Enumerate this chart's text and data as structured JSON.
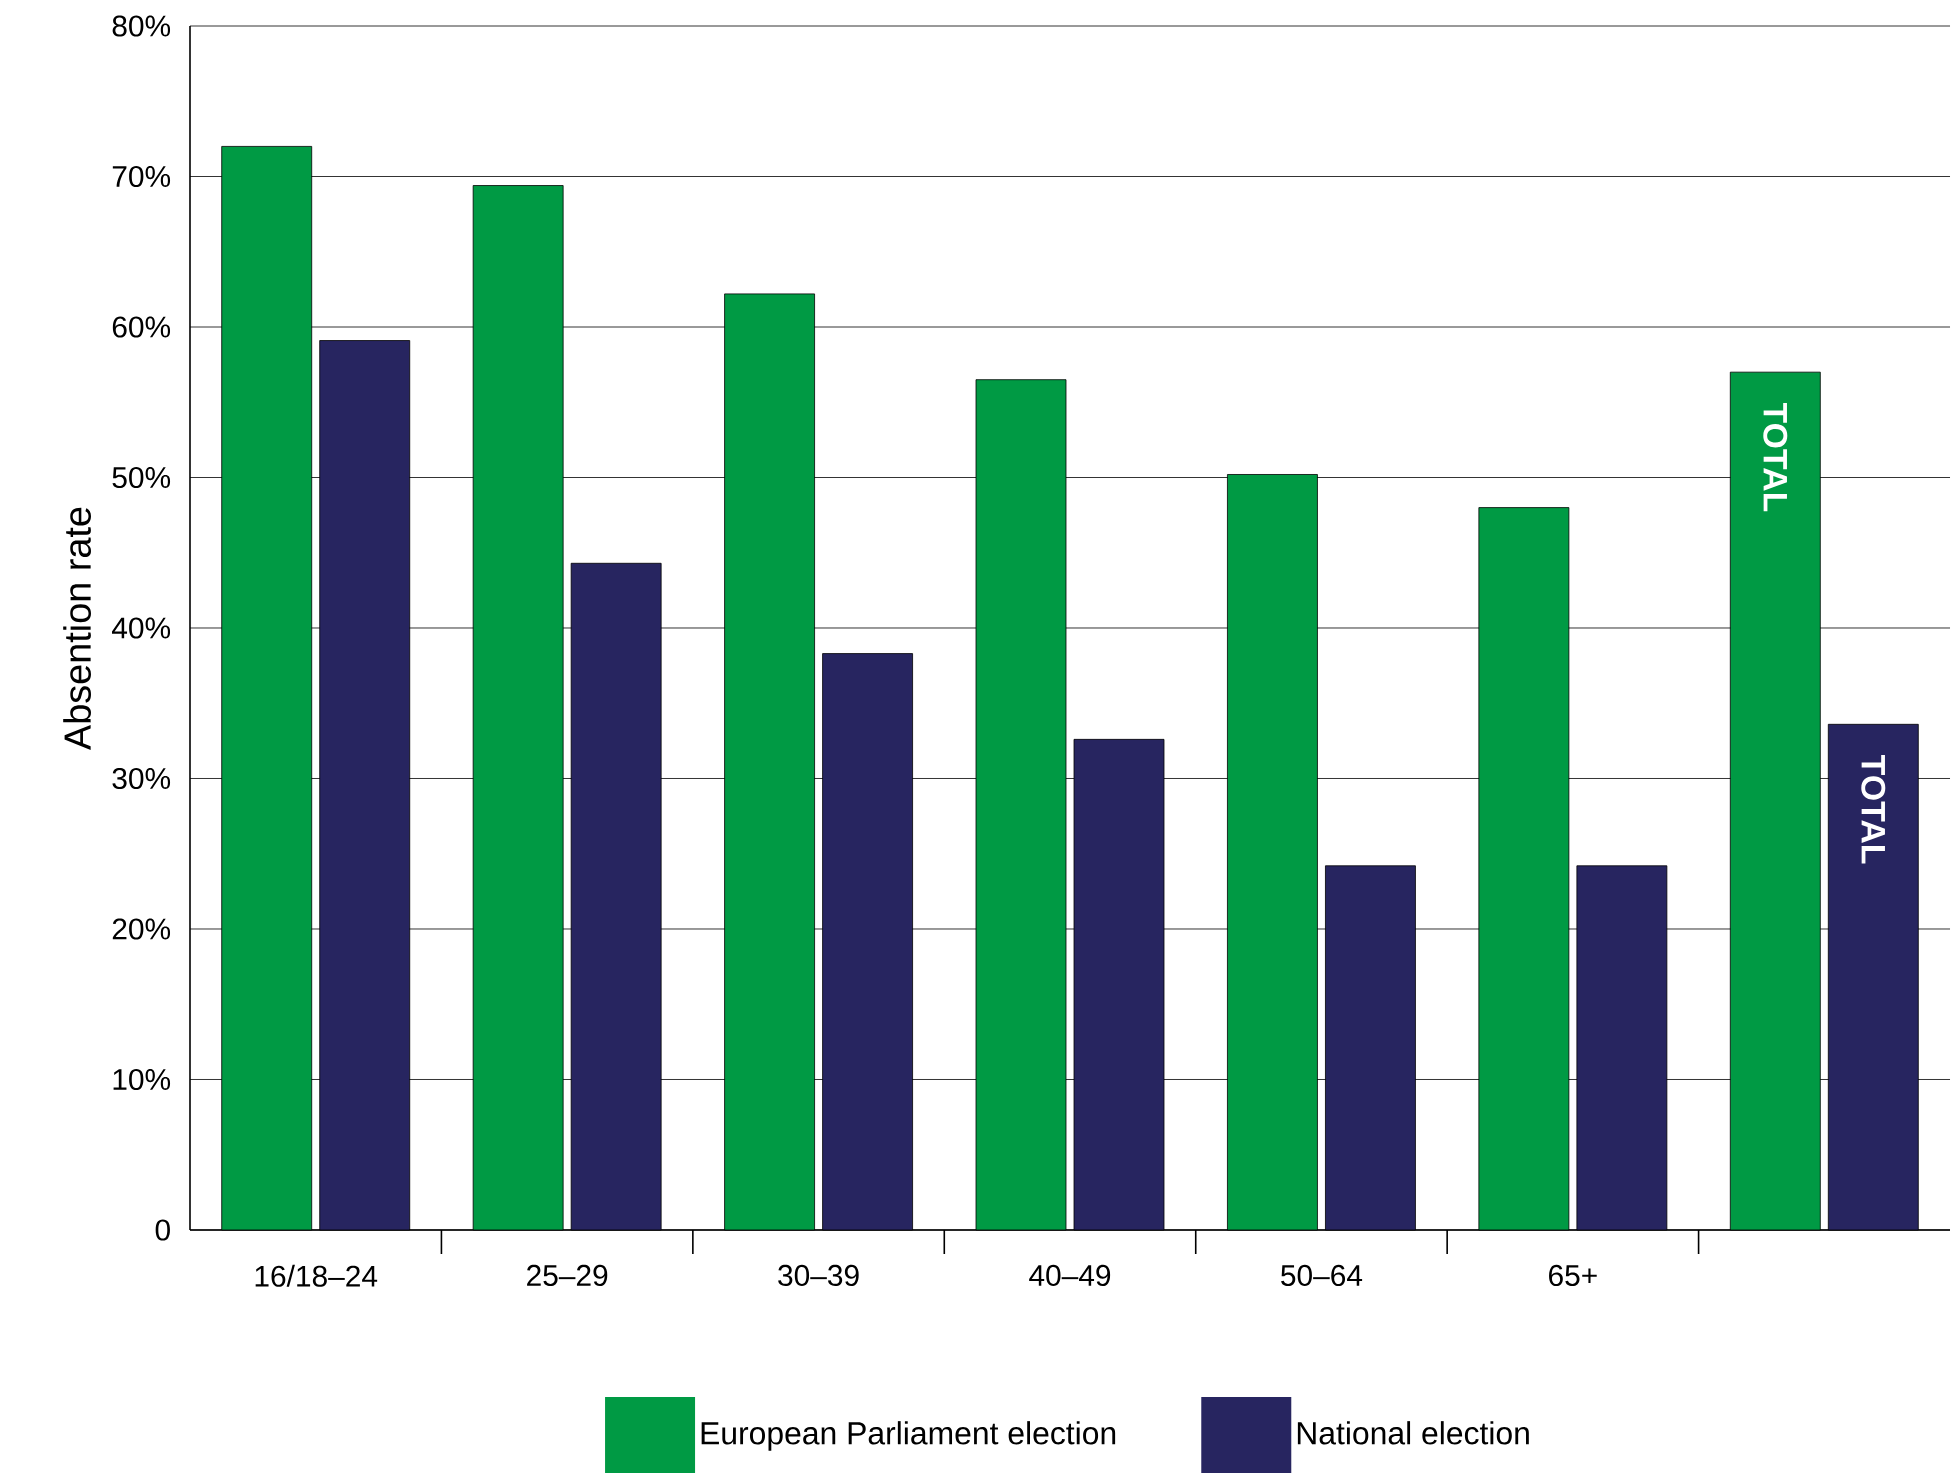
{
  "chart_data": {
    "type": "bar",
    "ylabel": "Absention rate",
    "categories": [
      "16/18–24",
      "25–29",
      "30–39",
      "40–49",
      "50–64",
      "65+",
      null
    ],
    "series": [
      {
        "name": "European Parliament election",
        "color": "#009a44",
        "values": [
          72,
          69.4,
          62.2,
          56.5,
          50.2,
          48,
          57
        ]
      },
      {
        "name": "National election",
        "color": "#272560",
        "values": [
          59.1,
          44.3,
          38.3,
          32.6,
          24.2,
          24.2,
          33.6
        ]
      }
    ],
    "annotations": [
      "TOTAL",
      "TOTAL"
    ],
    "ylim": [
      0,
      80
    ],
    "yticks": [
      0,
      {
        "value": 10,
        "label": "10%"
      },
      {
        "value": 20,
        "label": "20%"
      },
      {
        "value": 30,
        "label": "30%"
      },
      {
        "value": 40,
        "label": "40%"
      },
      {
        "value": 50,
        "label": "50%"
      },
      {
        "value": 60,
        "label": "60%"
      },
      {
        "value": 70,
        "label": "70%"
      },
      {
        "value": 80,
        "label": "80%"
      }
    ],
    "grid": "y",
    "legend": "bottom"
  }
}
